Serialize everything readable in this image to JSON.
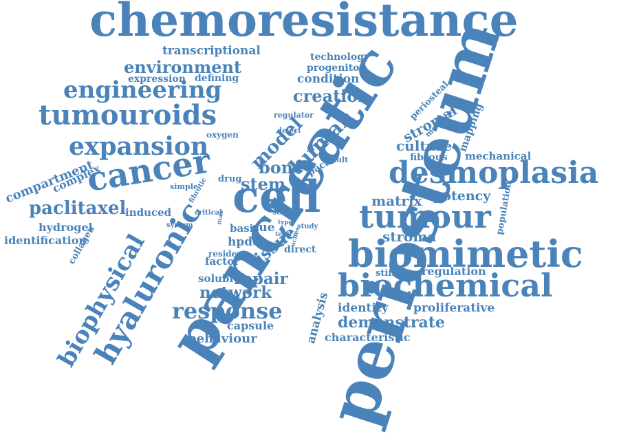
{
  "cloud": {
    "color": "#4a83b9",
    "words": [
      "chemoresistance",
      "periosteum",
      "pancreatic",
      "cell",
      "tumour",
      "biomimetic",
      "biochemical",
      "desmoplasia",
      "cancer",
      "tumouroids",
      "engineering",
      "expansion",
      "hyaluronic",
      "biophysical",
      "paclitaxel",
      "human",
      "model",
      "response",
      "stem",
      "bone",
      "tissue",
      "repair",
      "network",
      "environment",
      "creation",
      "transcriptional",
      "technology",
      "progenitor",
      "condition",
      "expression",
      "defining",
      "stromal",
      "periosteal",
      "mapping",
      "mediator",
      "regulator",
      "defect",
      "oxygen",
      "result",
      "culture",
      "fibrous",
      "mechanical",
      "paca",
      "drug",
      "simple",
      "fibrotic",
      "matrix",
      "potency",
      "population",
      "complex",
      "compartment",
      "induced",
      "hydrogel",
      "identification",
      "collagen",
      "system",
      "critical",
      "mas",
      "serum",
      "basis",
      "cue",
      "type",
      "term",
      "study",
      "acnes",
      "hpdcs",
      "resident",
      "factor",
      "direct",
      "soluble",
      "stroma",
      "stiffness",
      "regulation",
      "identity",
      "proliferative",
      "demonstrate",
      "analysis",
      "characteristic",
      "capsule",
      "behaviour"
    ]
  }
}
